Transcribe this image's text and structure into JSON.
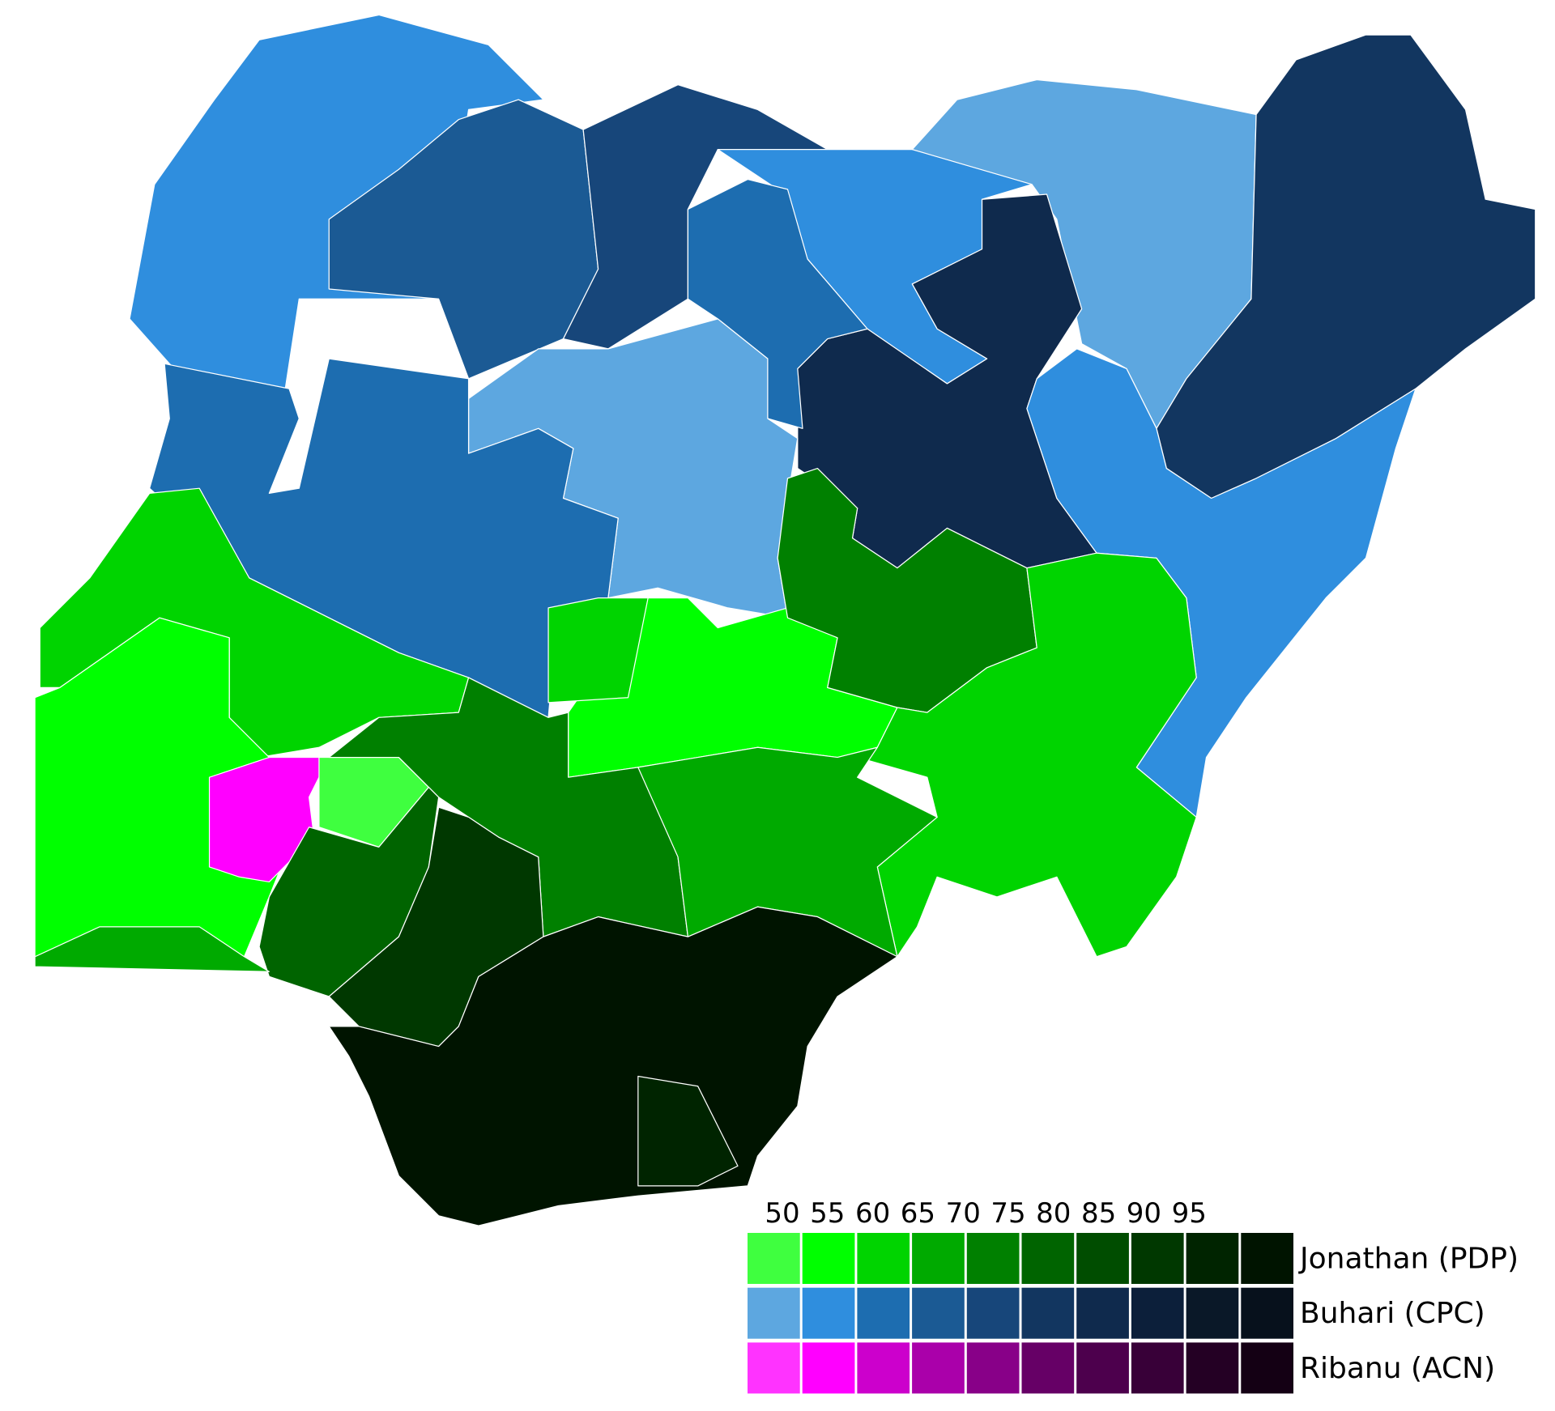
{
  "legend": {
    "ticks": [
      50,
      55,
      60,
      65,
      70,
      75,
      80,
      85,
      90,
      95
    ],
    "rows": [
      {
        "name": "Jonathan (PDP)",
        "colors": [
          "#3fff3f",
          "#00ff00",
          "#00d400",
          "#00aa00",
          "#008000",
          "#006400",
          "#004d00",
          "#003800",
          "#002400",
          "#001400"
        ]
      },
      {
        "name": "Buhari (CPC)",
        "colors": [
          "#5da7e0",
          "#2f8ede",
          "#1d6db0",
          "#1b5a94",
          "#17467a",
          "#123660",
          "#0f2a4d",
          "#0c1f3a",
          "#0a1828",
          "#07111c"
        ]
      },
      {
        "name": "Ribanu (ACN)",
        "colors": [
          "#ff33ff",
          "#ff00ff",
          "#cc00cc",
          "#aa00aa",
          "#880088",
          "#660066",
          "#4d004d",
          "#380038",
          "#240024",
          "#140014"
        ]
      }
    ]
  }
}
